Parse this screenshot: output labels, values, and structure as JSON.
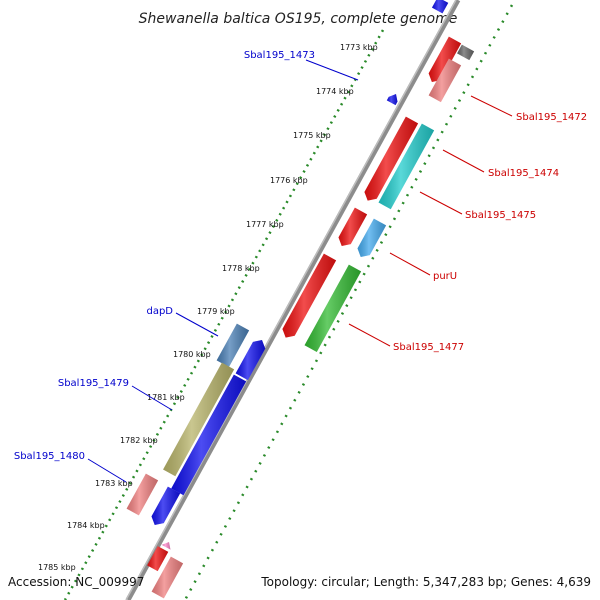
{
  "title": "Shewanella baltica OS195, complete genome",
  "footer": {
    "accession": "Accession: NC_009997",
    "topology": "Topology: circular; Length: 5,347,283 bp; Genes: 4,639"
  },
  "ticks": [
    "1773 kbp",
    "1774 kbp",
    "1775 kbp",
    "1776 kbp",
    "1777 kbp",
    "1778 kbp",
    "1779 kbp",
    "1780 kbp",
    "1781 kbp",
    "1782 kbp",
    "1783 kbp",
    "1784 kbp",
    "1785 kbp"
  ],
  "gene_labels": {
    "sbal195_1473": "Sbal195_1473",
    "dapd": "dapD",
    "sbal195_1479": "Sbal195_1479",
    "sbal195_1480": "Sbal195_1480",
    "sbal195_1472": "Sbal195_1472",
    "sbal195_1474": "Sbal195_1474",
    "sbal195_1475": "Sbal195_1475",
    "puru": "purU",
    "sbal195_1477": "Sbal195_1477"
  },
  "colors": {
    "backbone": "#8c8c8c",
    "dots": "#2a8a2a",
    "red": "#ee1111",
    "pink": "#f08080",
    "blue": "#1111ee",
    "cyan": "#22cccc",
    "lightblue": "#44aaee",
    "green": "#33bb33",
    "olive": "#b8b46a",
    "steel": "#4a7fb5",
    "gray": "#666666",
    "label_blue": "#0000cc",
    "label_red": "#cc0000"
  }
}
